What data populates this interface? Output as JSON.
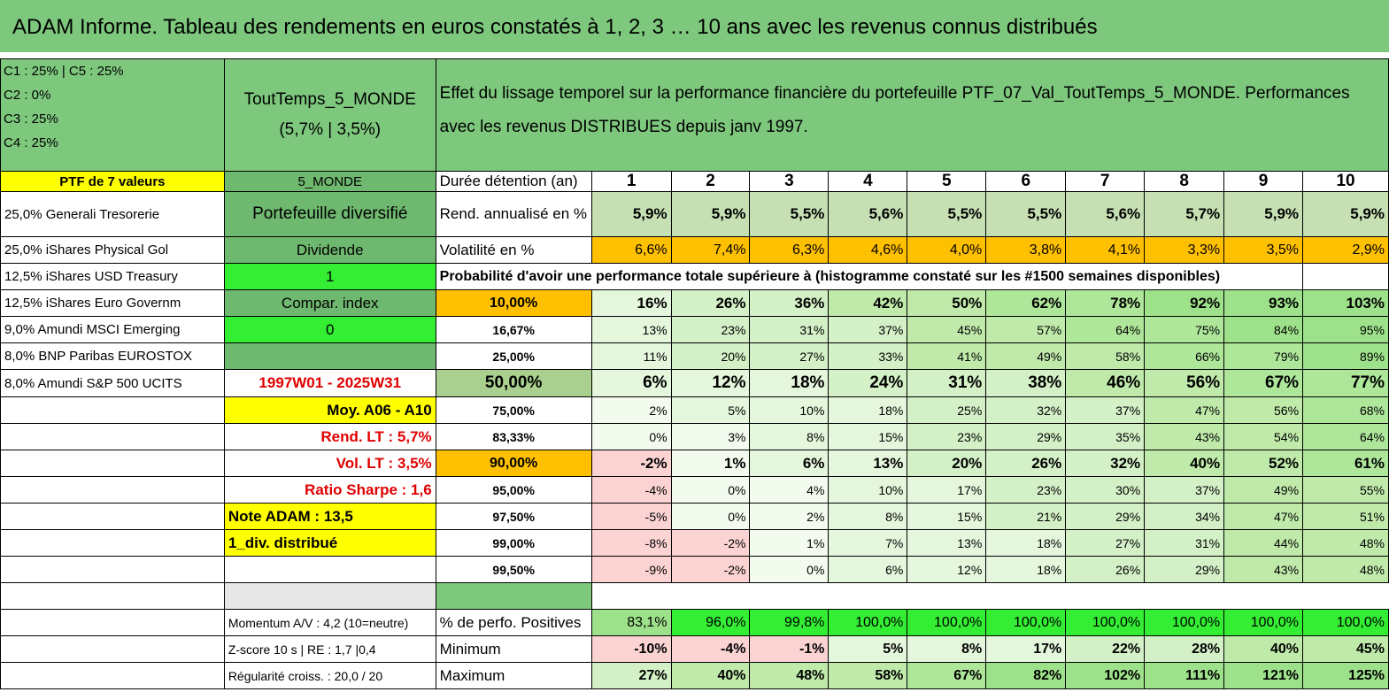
{
  "title": "ADAM Informe. Tableau des rendements en euros constatés à 1, 2, 3 … 10 ans avec les revenus connus distribués",
  "legend": [
    "C1 : 25% | C5 : 25%",
    "C2 : 0%",
    "C3 : 25%",
    "C4 : 25%"
  ],
  "pie_colors": [
    "#ffc000",
    "#d9d9d9",
    "#70ad47",
    "#ff0000"
  ],
  "fund_name": "ToutTemps_5_MONDE",
  "fund_perf": "(5,7% | 3,5%)",
  "description": "Effet du lissage temporel sur la performance financière du portefeuille PTF_07_Val_ToutTemps_5_MONDE. Performances avec les revenus DISTRIBUES depuis janv 1997.",
  "ptf_label": "PTF de 7 valeurs",
  "monde_label": "5_MONDE",
  "duree_label": "Durée détention (an)",
  "years": [
    "1",
    "2",
    "3",
    "4",
    "5",
    "6",
    "7",
    "8",
    "9",
    "10"
  ],
  "holdings": [
    "25,0% Generali Tresorerie",
    "25,0% iShares Physical Gol",
    "12,5% iShares USD Treasury",
    "12,5% iShares Euro Governm",
    "9,0% Amundi MSCI Emerging",
    "8,0% BNP Paribas EUROSTOX",
    "8,0% Amundi S&P 500 UCITS"
  ],
  "mid": [
    "Portefeuille diversifié",
    "Dividende",
    "1",
    "Compar. index",
    "0",
    "",
    "1997W01 - 2025W31",
    "Moy. A06 - A10",
    "Rend. LT : 5,7%",
    "Vol. LT : 3,5%",
    "Ratio Sharpe : 1,6",
    "Note ADAM : 13,5",
    "1_div. distribué"
  ],
  "rend_label": "Rend. annualisé en %",
  "rend": [
    "5,9%",
    "5,9%",
    "5,5%",
    "5,6%",
    "5,5%",
    "5,5%",
    "5,6%",
    "5,7%",
    "5,9%",
    "5,9%"
  ],
  "vol_label": "Volatilité en %",
  "vol": [
    "6,6%",
    "7,4%",
    "6,3%",
    "4,6%",
    "4,0%",
    "3,8%",
    "4,1%",
    "3,3%",
    "3,5%",
    "2,9%"
  ],
  "proba_label": "Probabilité d'avoir une performance totale supérieure à (histogramme constaté sur les #1500 semaines disponibles)",
  "proba": [
    {
      "p": "10,00%",
      "v": [
        "16%",
        "26%",
        "36%",
        "42%",
        "50%",
        "62%",
        "78%",
        "92%",
        "93%",
        "103%"
      ]
    },
    {
      "p": "16,67%",
      "v": [
        "13%",
        "23%",
        "31%",
        "37%",
        "45%",
        "57%",
        "64%",
        "75%",
        "84%",
        "95%"
      ]
    },
    {
      "p": "25,00%",
      "v": [
        "11%",
        "20%",
        "27%",
        "33%",
        "41%",
        "49%",
        "58%",
        "66%",
        "79%",
        "89%"
      ]
    },
    {
      "p": "50,00%",
      "v": [
        "6%",
        "12%",
        "18%",
        "24%",
        "31%",
        "38%",
        "46%",
        "56%",
        "67%",
        "77%"
      ]
    },
    {
      "p": "75,00%",
      "v": [
        "2%",
        "5%",
        "10%",
        "18%",
        "25%",
        "32%",
        "37%",
        "47%",
        "56%",
        "68%"
      ]
    },
    {
      "p": "83,33%",
      "v": [
        "0%",
        "3%",
        "8%",
        "15%",
        "23%",
        "29%",
        "35%",
        "43%",
        "54%",
        "64%"
      ]
    },
    {
      "p": "90,00%",
      "v": [
        "-2%",
        "1%",
        "6%",
        "13%",
        "20%",
        "26%",
        "32%",
        "40%",
        "52%",
        "61%"
      ]
    },
    {
      "p": "95,00%",
      "v": [
        "-4%",
        "0%",
        "4%",
        "10%",
        "17%",
        "23%",
        "30%",
        "37%",
        "49%",
        "55%"
      ]
    },
    {
      "p": "97,50%",
      "v": [
        "-5%",
        "0%",
        "2%",
        "8%",
        "15%",
        "21%",
        "29%",
        "34%",
        "47%",
        "51%"
      ]
    },
    {
      "p": "99,00%",
      "v": [
        "-8%",
        "-2%",
        "1%",
        "7%",
        "13%",
        "18%",
        "27%",
        "31%",
        "44%",
        "48%"
      ]
    },
    {
      "p": "99,50%",
      "v": [
        "-9%",
        "-2%",
        "0%",
        "6%",
        "12%",
        "18%",
        "26%",
        "29%",
        "43%",
        "48%"
      ]
    }
  ],
  "bottom": [
    {
      "left": "Momentum A/V : 4,2 (10=neutre)",
      "label": "% de perfo. Positives",
      "v": [
        "83,1%",
        "96,0%",
        "99,8%",
        "100,0%",
        "100,0%",
        "100,0%",
        "100,0%",
        "100,0%",
        "100,0%",
        "100,0%"
      ]
    },
    {
      "left": "Z-score 10 s | RE : 1,7 |0,4",
      "label": "Minimum",
      "v": [
        "-10%",
        "-4%",
        "-1%",
        "5%",
        "8%",
        "17%",
        "22%",
        "28%",
        "40%",
        "45%"
      ]
    },
    {
      "left": "Régularité croiss. : 20,0 / 20",
      "label": "Maximum",
      "v": [
        "27%",
        "40%",
        "48%",
        "58%",
        "67%",
        "82%",
        "102%",
        "111%",
        "121%",
        "125%"
      ]
    }
  ]
}
